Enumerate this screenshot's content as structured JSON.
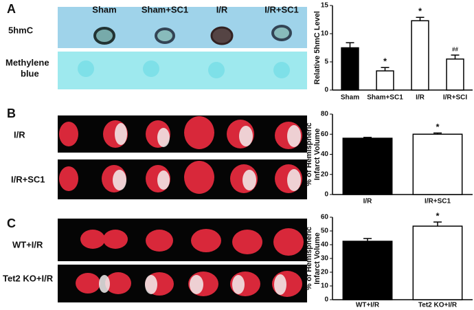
{
  "figure": {
    "panels": [
      "A",
      "B",
      "C"
    ],
    "blot_columns": [
      "Sham",
      "Sham+SC1",
      "I/R",
      "I/R+SC1"
    ],
    "blot_rows": [
      "5hmC",
      [
        "Methylene",
        "blue"
      ]
    ],
    "brain_rows_b": [
      "I/R",
      "I/R+SC1"
    ],
    "brain_rows_c": [
      "WT+I/R",
      "Tet2 KO+I/R"
    ]
  },
  "chart_data": [
    {
      "type": "bar",
      "ylabel": [
        "Relative 5hmC Level"
      ],
      "categories": [
        "Sham",
        "Sham+SC1",
        "I/R",
        "I/R+SCI"
      ],
      "values": [
        7.5,
        3.4,
        12.3,
        5.5
      ],
      "errors": [
        0.9,
        0.6,
        0.6,
        0.7
      ],
      "annotations": [
        null,
        "*",
        "*",
        "##"
      ],
      "colors": [
        "#000000",
        "#ffffff",
        "#ffffff",
        "#ffffff"
      ],
      "ylim": [
        0,
        15
      ],
      "yticks": [
        0,
        5,
        10,
        15
      ]
    },
    {
      "type": "bar",
      "ylabel": [
        "% of Hemispheric",
        "Infarct Volume"
      ],
      "categories": [
        "I/R",
        "I/R+SC1"
      ],
      "values": [
        56,
        60
      ],
      "errors": [
        0.8,
        1.2
      ],
      "annotations": [
        null,
        "*"
      ],
      "colors": [
        "#000000",
        "#ffffff"
      ],
      "ylim": [
        0,
        80
      ],
      "yticks": [
        0,
        20,
        40,
        60,
        80
      ]
    },
    {
      "type": "bar",
      "ylabel": [
        "% of Hemispheric",
        "Infarct Volume"
      ],
      "categories": [
        "WT+I/R",
        "Tet2 KO+I/R"
      ],
      "values": [
        42.5,
        53.5
      ],
      "errors": [
        2,
        3
      ],
      "annotations": [
        null,
        "*"
      ],
      "colors": [
        "#000000",
        "#ffffff"
      ],
      "ylim": [
        0,
        60
      ],
      "yticks": [
        0,
        10,
        20,
        30,
        40,
        50,
        60
      ]
    }
  ]
}
